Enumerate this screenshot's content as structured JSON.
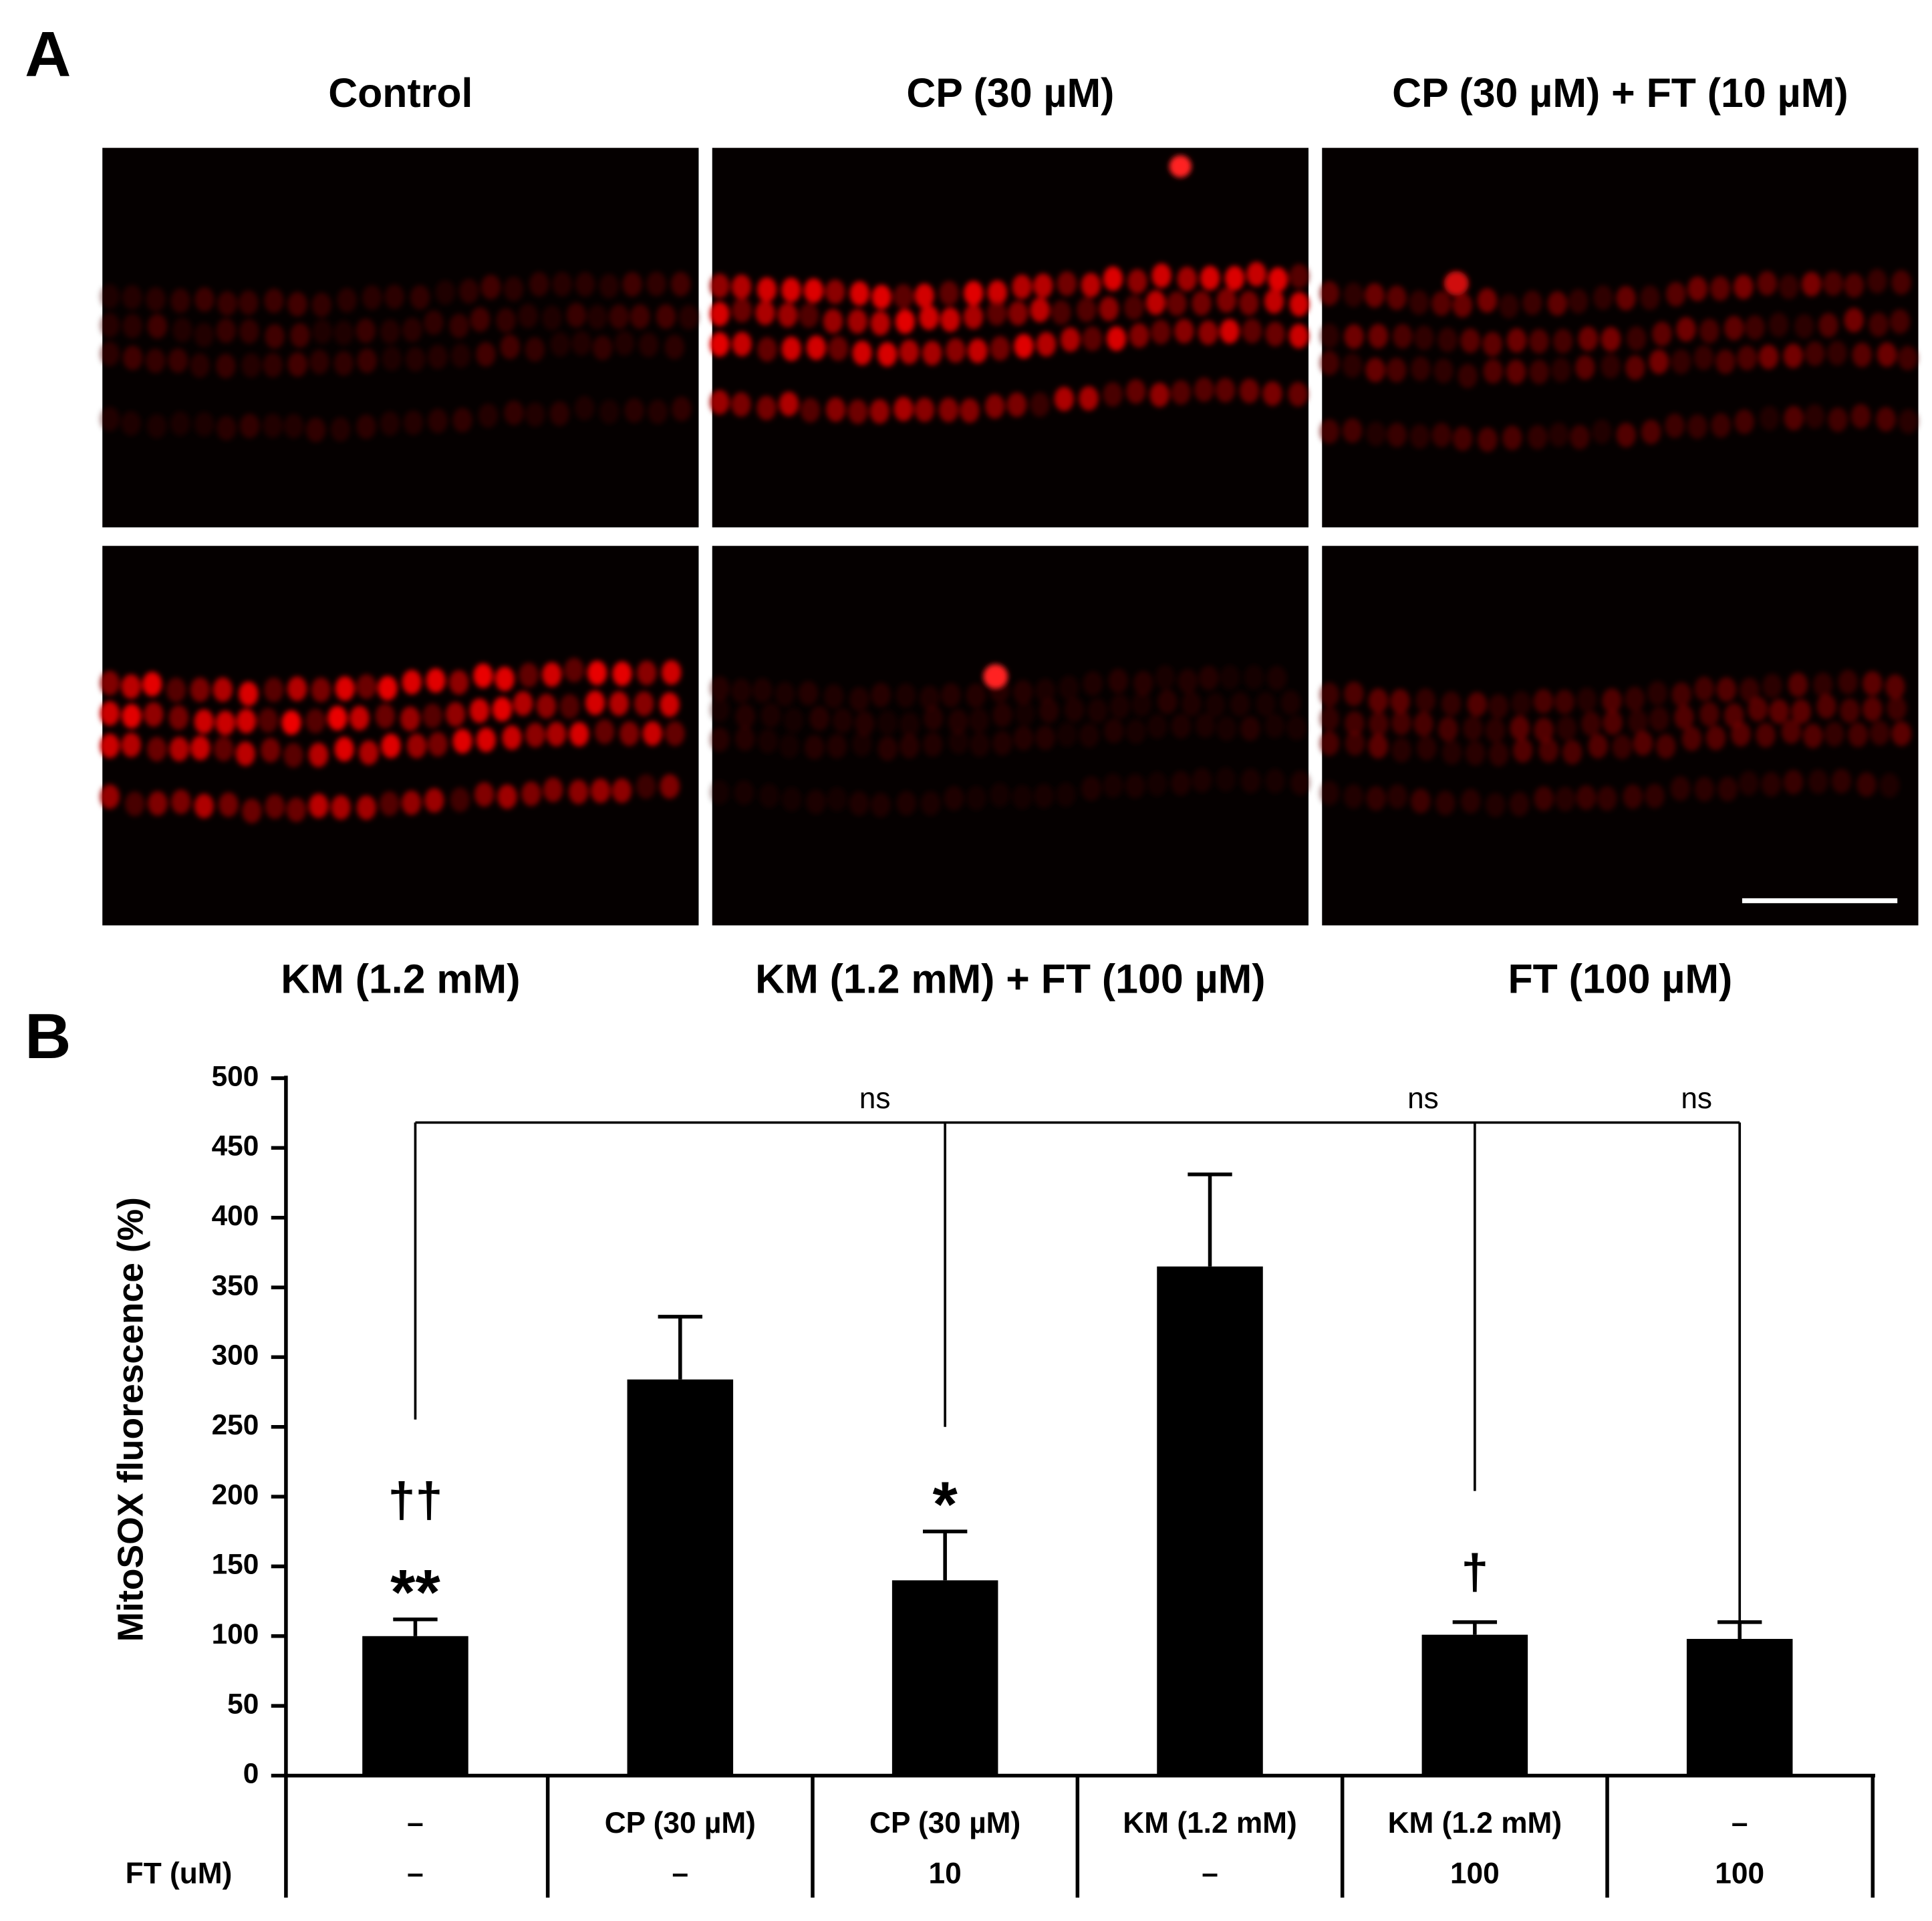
{
  "panel_a": {
    "label": "A",
    "captions_top": [
      "Control",
      "CP (30 µM)",
      "CP (30 µM) + FT (10 µM)"
    ],
    "captions_bottom": [
      "KM (1.2 mM)",
      "KM (1.2 mM) + FT (100 µM)",
      "FT (100 µM)"
    ]
  },
  "chart_data": {
    "type": "bar",
    "panel_label": "B",
    "y_label": "MitoSOX fluorescence (%)",
    "categories": [
      "–",
      "CP (30 µM)",
      "CP (30 µM)",
      "KM (1.2 mM)",
      "KM (1.2 mM)",
      "–"
    ],
    "second_row": {
      "label": "FT (uM)",
      "values": [
        "–",
        "–",
        "10",
        "–",
        "100",
        "100"
      ]
    },
    "values": [
      100,
      284,
      140,
      365,
      101,
      98
    ],
    "errors": [
      12,
      45,
      35,
      66,
      9,
      12
    ],
    "color": "#000000",
    "value_annotations": [
      [
        "††",
        "**"
      ],
      [],
      [
        "*"
      ],
      [],
      [
        "†"
      ],
      []
    ],
    "significance": [
      "ns",
      "ns",
      "ns"
    ],
    "ylim": [
      0,
      500
    ],
    "yticks": [
      0,
      50,
      100,
      150,
      200,
      250,
      300,
      350,
      400,
      450,
      500
    ]
  }
}
